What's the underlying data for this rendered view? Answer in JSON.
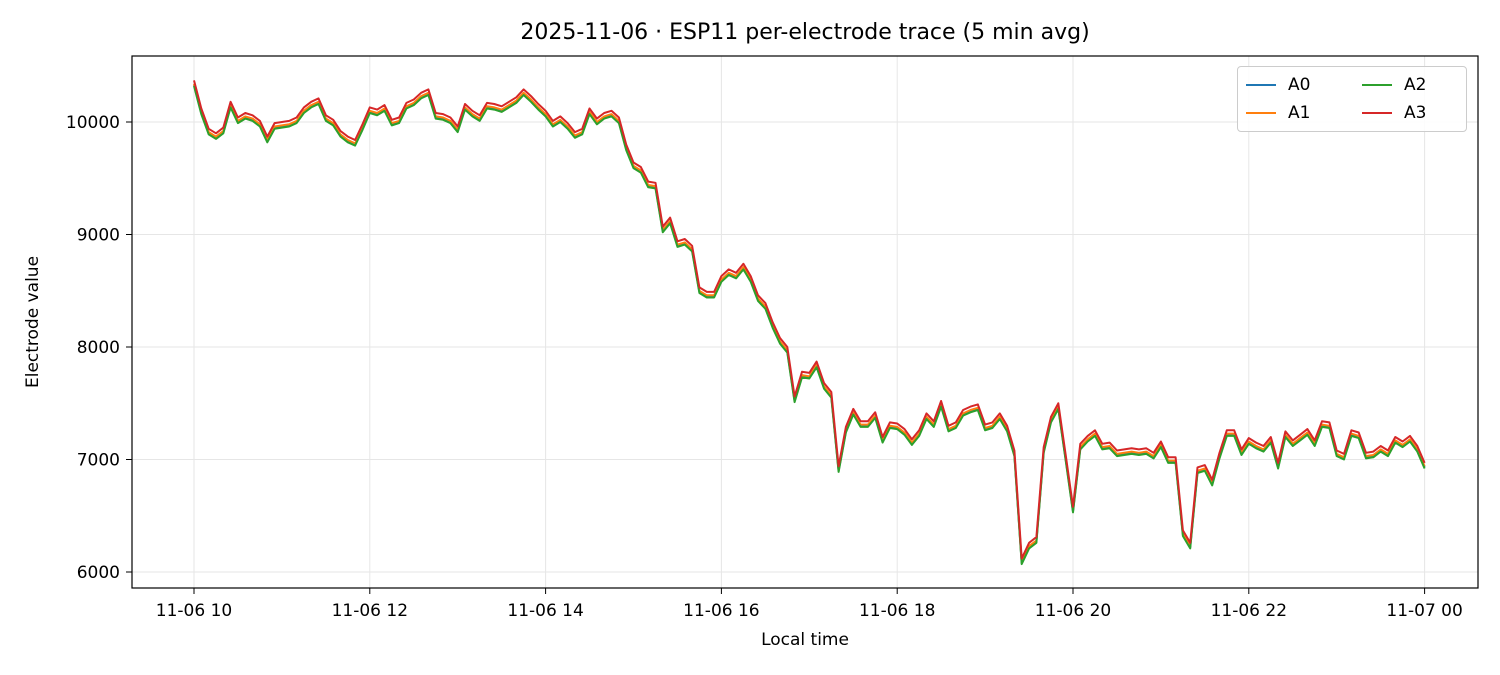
{
  "chart_data": {
    "type": "line",
    "title": "2025-11-06 · ESP11 per-electrode trace (5 min avg)",
    "xlabel": "Local time",
    "ylabel": "Electrode value",
    "x_ticks": [
      "11-06 10",
      "11-06 12",
      "11-06 14",
      "11-06 16",
      "11-06 18",
      "11-06 20",
      "11-06 22",
      "11-07 00"
    ],
    "y_ticks": [
      6000,
      7000,
      8000,
      9000,
      10000
    ],
    "ylim": [
      5850,
      10580
    ],
    "grid": true,
    "legend_position": "upper right",
    "legend_columns": 2,
    "x_start": "2025-11-06 10:00",
    "x_step_minutes": 5,
    "series": [
      {
        "name": "A0",
        "color": "#1f77b4",
        "offset": -40
      },
      {
        "name": "A1",
        "color": "#ff7f0e",
        "offset": -30
      },
      {
        "name": "A2",
        "color": "#2ca02c",
        "offset": -50
      },
      {
        "name": "A3",
        "color": "#d62728",
        "offset": 0
      }
    ],
    "base_values": [
      10370,
      10120,
      9940,
      9900,
      9950,
      10180,
      10040,
      10080,
      10060,
      10010,
      9870,
      9990,
      10000,
      10010,
      10040,
      10130,
      10180,
      10210,
      10060,
      10020,
      9920,
      9870,
      9840,
      9980,
      10130,
      10110,
      10150,
      10020,
      10040,
      10170,
      10200,
      10260,
      10290,
      10080,
      10070,
      10040,
      9960,
      10160,
      10100,
      10060,
      10170,
      10160,
      10140,
      10180,
      10220,
      10290,
      10230,
      10160,
      10100,
      10010,
      10050,
      9990,
      9910,
      9940,
      10120,
      10030,
      10080,
      10100,
      10040,
      9800,
      9640,
      9600,
      9470,
      9460,
      9070,
      9150,
      8940,
      8960,
      8900,
      8530,
      8490,
      8490,
      8630,
      8690,
      8660,
      8740,
      8630,
      8460,
      8390,
      8220,
      8080,
      8000,
      7560,
      7780,
      7770,
      7870,
      7680,
      7600,
      6940,
      7290,
      7450,
      7340,
      7340,
      7420,
      7200,
      7330,
      7320,
      7270,
      7180,
      7260,
      7410,
      7340,
      7520,
      7300,
      7330,
      7440,
      7470,
      7490,
      7310,
      7330,
      7410,
      7300,
      7080,
      6120,
      6260,
      6310,
      7110,
      7380,
      7500,
      7040,
      6580,
      7140,
      7210,
      7260,
      7140,
      7150,
      7080,
      7090,
      7100,
      7090,
      7100,
      7060,
      7160,
      7020,
      7020,
      6370,
      6260,
      6930,
      6950,
      6820,
      7060,
      7260,
      7260,
      7090,
      7190,
      7150,
      7120,
      7200,
      6970,
      7250,
      7170,
      7220,
      7270,
      7170,
      7340,
      7330,
      7080,
      7050,
      7260,
      7240,
      7060,
      7070,
      7120,
      7080,
      7200,
      7160,
      7210,
      7120,
      6970
    ]
  },
  "legend": {
    "items": [
      {
        "label": "A0",
        "color": "#1f77b4"
      },
      {
        "label": "A1",
        "color": "#ff7f0e"
      },
      {
        "label": "A2",
        "color": "#2ca02c"
      },
      {
        "label": "A3",
        "color": "#d62728"
      }
    ]
  }
}
